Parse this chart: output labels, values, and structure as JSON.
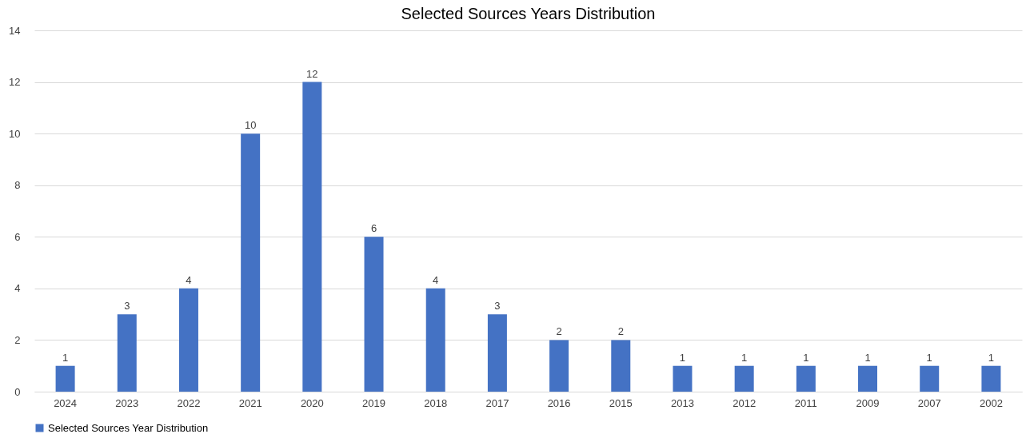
{
  "chart_data": {
    "type": "bar",
    "title": "Selected Sources Years Distribution",
    "categories": [
      "2024",
      "2023",
      "2022",
      "2021",
      "2020",
      "2019",
      "2018",
      "2017",
      "2016",
      "2015",
      "2013",
      "2012",
      "2011",
      "2009",
      "2007",
      "2002"
    ],
    "series": [
      {
        "name": "Selected Sources Year Distribution",
        "color": "#4472c4",
        "values": [
          1,
          3,
          4,
          10,
          12,
          6,
          4,
          3,
          2,
          2,
          1,
          1,
          1,
          1,
          1,
          1
        ]
      }
    ],
    "ylim": [
      0,
      14
    ],
    "yticks": [
      0,
      2,
      4,
      6,
      8,
      10,
      12,
      14
    ],
    "grid": "y",
    "legend": "bottom",
    "data_labels": true
  }
}
